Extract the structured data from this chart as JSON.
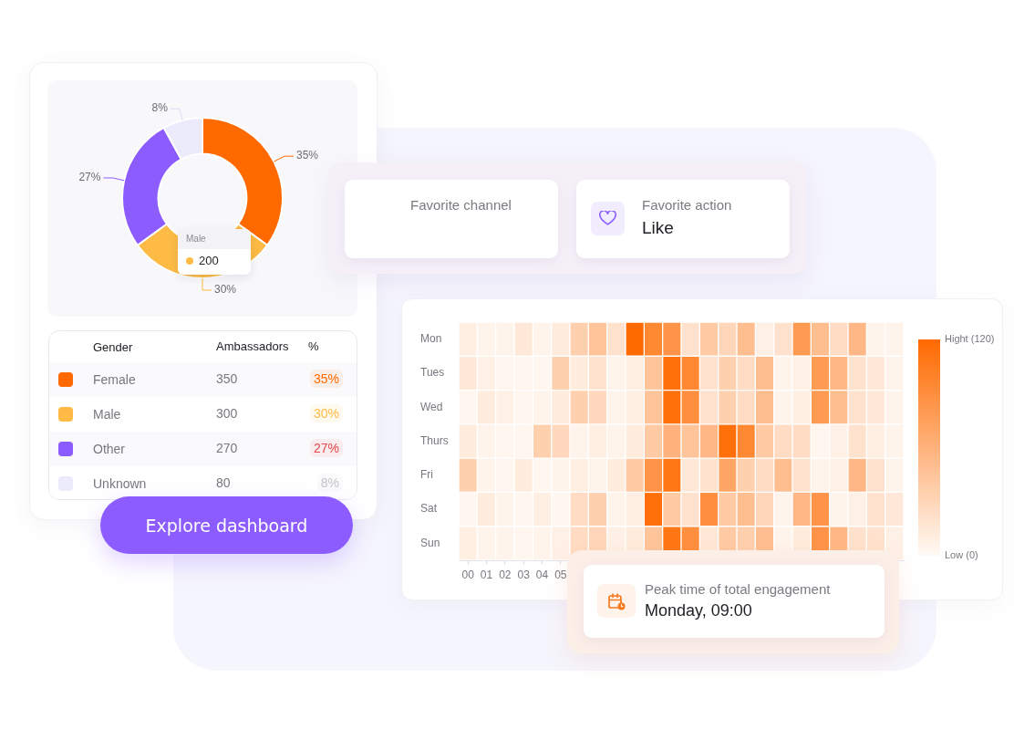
{
  "chart_data": [
    {
      "type": "donut",
      "categories": [
        "Female",
        "Male",
        "Other",
        "Unknown"
      ],
      "values": [
        35,
        30,
        27,
        8
      ],
      "value_labels": [
        "35%",
        "30%",
        "27%",
        "8%"
      ],
      "colors": [
        "#ff6a00",
        "#fdbb45",
        "#8c5cff",
        "#ecebfc"
      ],
      "legend": "bottom",
      "legend_title": "Gender",
      "annotations": [
        {
          "text": "200",
          "x": "Male"
        }
      ]
    },
    {
      "type": "other",
      "annotations": [
        "Ambassadors",
        "%",
        "350",
        "35%",
        "300",
        "30%",
        "270",
        "27%",
        "80",
        "8%"
      ]
    },
    {
      "type": "other",
      "annotations": [
        "Explore dashboard"
      ]
    },
    {
      "type": "other",
      "title": "Favorite channel"
    },
    {
      "type": "other",
      "title": "Favorite action",
      "subtitle": "Like"
    },
    {
      "type": "heatmap",
      "categories": [
        "00",
        "01",
        "02",
        "03",
        "04",
        "05",
        null,
        null,
        null,
        null,
        null,
        null,
        null,
        null,
        null,
        null,
        null,
        null,
        null,
        null,
        null,
        null,
        null,
        null
      ],
      "y_categories": [
        "Mon",
        "Tues",
        "Wed",
        "Thurs",
        "Fri",
        "Sat",
        "Sun"
      ],
      "cells": [
        [
          10,
          5,
          5,
          15,
          5,
          12,
          35,
          45,
          20,
          120,
          95,
          85,
          20,
          40,
          30,
          50,
          8,
          20,
          80,
          50,
          25,
          55,
          5,
          5
        ],
        [
          15,
          8,
          3,
          3,
          3,
          35,
          12,
          20,
          5,
          10,
          45,
          115,
          95,
          20,
          35,
          25,
          50,
          5,
          8,
          80,
          55,
          20,
          15,
          5
        ],
        [
          3,
          12,
          8,
          3,
          5,
          12,
          35,
          28,
          5,
          10,
          45,
          115,
          90,
          20,
          35,
          25,
          50,
          5,
          10,
          80,
          50,
          20,
          15,
          5
        ],
        [
          12,
          5,
          3,
          3,
          35,
          28,
          5,
          10,
          5,
          12,
          40,
          60,
          45,
          55,
          115,
          95,
          40,
          25,
          25,
          3,
          8,
          20,
          10,
          5
        ],
        [
          35,
          5,
          3,
          12,
          3,
          5,
          10,
          5,
          12,
          40,
          85,
          110,
          15,
          20,
          70,
          35,
          25,
          50,
          20,
          5,
          8,
          55,
          20,
          5
        ],
        [
          3,
          12,
          5,
          3,
          10,
          3,
          25,
          35,
          5,
          10,
          115,
          40,
          20,
          90,
          40,
          50,
          30,
          5,
          55,
          85,
          5,
          8,
          20,
          15
        ],
        [
          10,
          5,
          5,
          3,
          5,
          8,
          25,
          30,
          8,
          12,
          45,
          110,
          90,
          15,
          40,
          35,
          50,
          5,
          12,
          85,
          55,
          20,
          20,
          8
        ]
      ],
      "color": "#ff6a00",
      "clim": [
        0,
        120
      ],
      "cticks": [
        {
          "value": 0,
          "label": "Low (0)"
        },
        {
          "value": 120,
          "label": "Hight (120)"
        }
      ]
    },
    {
      "type": "other",
      "title": "Peak time of total engagement",
      "subtitle": "Monday, 09:00"
    }
  ]
}
